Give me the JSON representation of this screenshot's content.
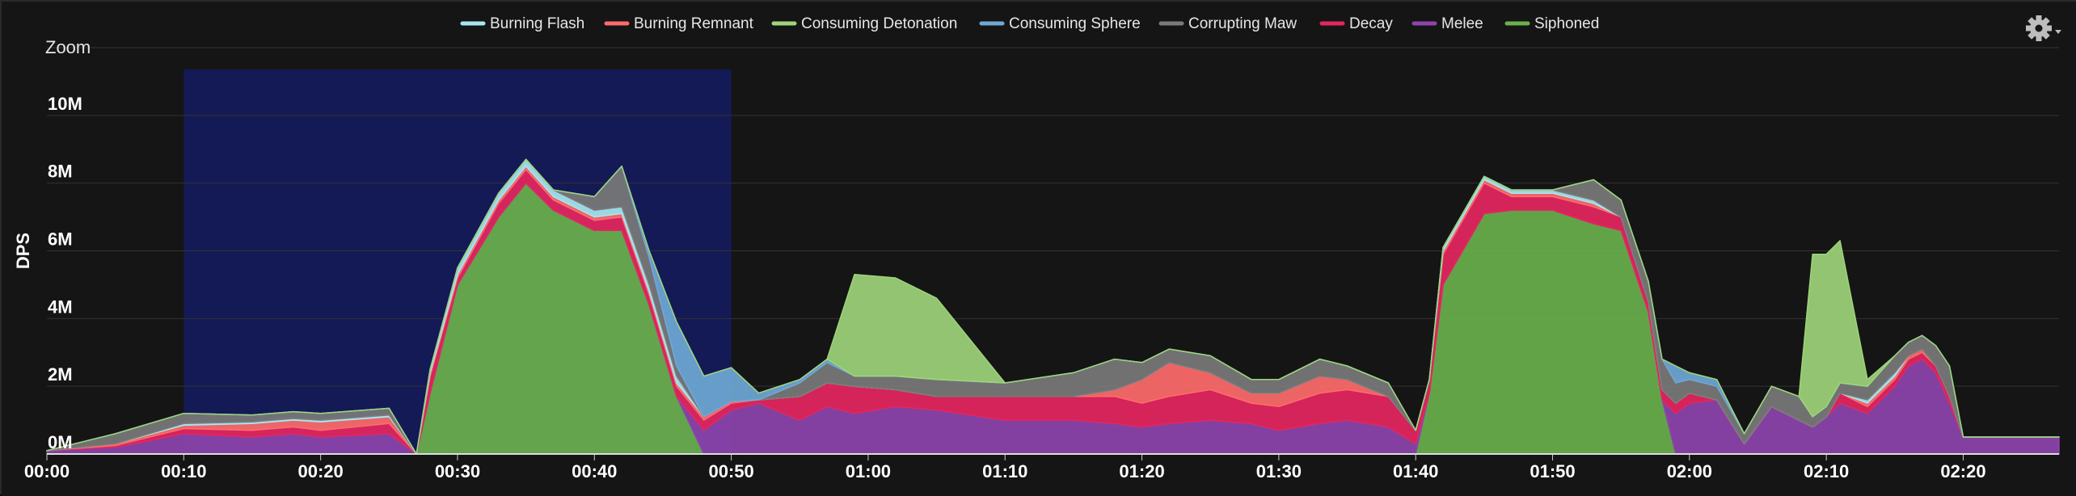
{
  "ui": {
    "zoom_label": "Zoom",
    "settings_icon": "gear-icon",
    "background": "#151515",
    "selection_color": "#141a55"
  },
  "chart_data": {
    "type": "area",
    "stacked": true,
    "ylabel": "DPS",
    "xlabel": "",
    "title": "",
    "xlim": [
      "00:00",
      "02:27"
    ],
    "ylim": [
      0,
      12000000
    ],
    "y_ticks": [
      0,
      2000000,
      4000000,
      6000000,
      8000000,
      10000000
    ],
    "y_tick_labels": [
      "0M",
      "2M",
      "4M",
      "6M",
      "8M",
      "10M"
    ],
    "x_ticks": [
      0,
      10,
      20,
      30,
      40,
      50,
      60,
      70,
      80,
      90,
      100,
      110,
      120,
      130,
      140
    ],
    "x_tick_labels": [
      "00:00",
      "00:10",
      "00:20",
      "00:30",
      "00:40",
      "00:50",
      "01:00",
      "01:10",
      "01:20",
      "01:30",
      "01:40",
      "01:50",
      "02:00",
      "02:10",
      "02:20"
    ],
    "selection": [
      "00:10",
      "00:50"
    ],
    "grid": true,
    "legend_position": "top",
    "x": [
      0,
      5,
      10,
      15,
      18,
      20,
      25,
      27,
      28,
      30,
      33,
      35,
      37,
      40,
      42,
      44,
      46,
      48,
      50,
      52,
      55,
      57,
      59,
      62,
      65,
      70,
      75,
      78,
      80,
      82,
      85,
      88,
      90,
      93,
      95,
      98,
      100,
      101,
      102,
      105,
      107,
      110,
      113,
      115,
      117,
      118,
      119,
      120,
      122,
      124,
      126,
      128,
      129,
      130,
      131,
      133,
      135,
      136,
      137,
      138,
      139,
      140,
      145,
      147
    ],
    "series": [
      {
        "name": "Siphoned",
        "color": "#6ab04c",
        "values": [
          0,
          0,
          0,
          0,
          0,
          0,
          0,
          0,
          1800000,
          5000000,
          7000000,
          8000000,
          7200000,
          6600000,
          6600000,
          4400000,
          1700000,
          0,
          0,
          0,
          0,
          0,
          0,
          0,
          0,
          0,
          0,
          0,
          0,
          0,
          0,
          0,
          0,
          0,
          0,
          0,
          0,
          1800000,
          5000000,
          7100000,
          7200000,
          7200000,
          6800000,
          6600000,
          4200000,
          1600000,
          0,
          0,
          0,
          0,
          0,
          0,
          0,
          0,
          0,
          0,
          0,
          0,
          0,
          0,
          0,
          0,
          0,
          0
        ]
      },
      {
        "name": "Melee",
        "color": "#8e44ad",
        "values": [
          100000,
          200000,
          600000,
          500000,
          600000,
          500000,
          600000,
          0,
          0,
          0,
          0,
          0,
          0,
          0,
          0,
          0,
          0,
          700000,
          1300000,
          1500000,
          1000000,
          1400000,
          1200000,
          1400000,
          1300000,
          1000000,
          1000000,
          900000,
          800000,
          900000,
          1000000,
          900000,
          700000,
          900000,
          1000000,
          800000,
          300000,
          0,
          0,
          0,
          0,
          0,
          0,
          0,
          0,
          0,
          1200000,
          1500000,
          1600000,
          300000,
          1400000,
          1000000,
          800000,
          1100000,
          1500000,
          1200000,
          2000000,
          2600000,
          2800000,
          2400000,
          1500000,
          500000,
          500000,
          500000
        ]
      },
      {
        "name": "Decay",
        "color": "#e5265f",
        "values": [
          0,
          50000,
          150000,
          200000,
          200000,
          200000,
          300000,
          0,
          500000,
          200000,
          400000,
          400000,
          300000,
          300000,
          400000,
          300000,
          300000,
          300000,
          200000,
          100000,
          700000,
          700000,
          800000,
          500000,
          400000,
          700000,
          700000,
          800000,
          700000,
          800000,
          900000,
          600000,
          700000,
          900000,
          900000,
          900000,
          400000,
          400000,
          900000,
          900000,
          400000,
          400000,
          500000,
          400000,
          300000,
          300000,
          300000,
          300000,
          0,
          0,
          0,
          0,
          0,
          0,
          300000,
          200000,
          200000,
          200000,
          200000,
          200000,
          200000,
          0,
          0,
          0
        ]
      },
      {
        "name": "Burning Remnant",
        "color": "#ff6b6b",
        "values": [
          0,
          50000,
          100000,
          200000,
          200000,
          250000,
          200000,
          0,
          100000,
          100000,
          100000,
          100000,
          100000,
          100000,
          100000,
          100000,
          100000,
          100000,
          50000,
          0,
          0,
          0,
          0,
          0,
          0,
          0,
          0,
          200000,
          700000,
          1000000,
          500000,
          300000,
          400000,
          500000,
          300000,
          0,
          0,
          0,
          100000,
          100000,
          100000,
          100000,
          100000,
          0,
          0,
          0,
          0,
          0,
          0,
          0,
          0,
          0,
          0,
          0,
          0,
          100000,
          100000,
          100000,
          100000,
          0,
          0,
          0,
          0,
          0
        ]
      },
      {
        "name": "Burning Flash",
        "color": "#a8e6f0",
        "values": [
          0,
          0,
          50000,
          50000,
          50000,
          50000,
          50000,
          0,
          100000,
          200000,
          200000,
          200000,
          200000,
          200000,
          200000,
          200000,
          200000,
          0,
          0,
          0,
          0,
          0,
          0,
          0,
          0,
          0,
          0,
          0,
          0,
          0,
          0,
          0,
          0,
          0,
          0,
          0,
          0,
          0,
          100000,
          100000,
          100000,
          100000,
          100000,
          0,
          0,
          0,
          0,
          0,
          0,
          0,
          0,
          0,
          0,
          0,
          0,
          100000,
          100000,
          0,
          0,
          0,
          0,
          0,
          0,
          0
        ]
      },
      {
        "name": "Corrupting Maw",
        "color": "#7a7a7a",
        "values": [
          0,
          300000,
          300000,
          200000,
          200000,
          200000,
          200000,
          0,
          0,
          0,
          0,
          0,
          0,
          400000,
          1200000,
          800000,
          300000,
          0,
          0,
          0,
          400000,
          600000,
          300000,
          400000,
          500000,
          400000,
          700000,
          900000,
          500000,
          400000,
          500000,
          400000,
          400000,
          500000,
          400000,
          400000,
          0,
          0,
          0,
          0,
          0,
          0,
          600000,
          500000,
          600000,
          900000,
          600000,
          400000,
          400000,
          300000,
          600000,
          700000,
          300000,
          300000,
          300000,
          400000,
          500000,
          400000,
          400000,
          600000,
          900000,
          0,
          0,
          0
        ]
      },
      {
        "name": "Consuming Sphere",
        "color": "#6fa8d6",
        "values": [
          0,
          0,
          0,
          0,
          0,
          0,
          0,
          0,
          0,
          0,
          0,
          0,
          0,
          0,
          0,
          200000,
          1300000,
          1200000,
          1000000,
          200000,
          100000,
          100000,
          0,
          0,
          0,
          0,
          0,
          0,
          0,
          0,
          0,
          0,
          0,
          0,
          0,
          0,
          0,
          0,
          0,
          0,
          0,
          0,
          0,
          0,
          0,
          0,
          500000,
          200000,
          200000,
          0,
          0,
          0,
          0,
          0,
          0,
          0,
          0,
          0,
          0,
          0,
          0,
          0,
          0,
          0
        ]
      },
      {
        "name": "Consuming Detonation",
        "color": "#9ed47a",
        "values": [
          0,
          0,
          0,
          0,
          0,
          0,
          0,
          0,
          0,
          0,
          0,
          0,
          0,
          0,
          0,
          0,
          0,
          0,
          0,
          0,
          0,
          0,
          3000000,
          2900000,
          2400000,
          0,
          0,
          0,
          0,
          0,
          0,
          0,
          0,
          0,
          0,
          0,
          0,
          0,
          0,
          0,
          0,
          0,
          0,
          0,
          0,
          0,
          0,
          0,
          0,
          0,
          0,
          0,
          4800000,
          4500000,
          4200000,
          200000,
          0,
          0,
          0,
          0,
          0,
          0,
          0,
          0
        ]
      }
    ],
    "legend": [
      "Burning Flash",
      "Burning Remnant",
      "Consuming Detonation",
      "Consuming Sphere",
      "Corrupting Maw",
      "Decay",
      "Melee",
      "Siphoned"
    ]
  }
}
